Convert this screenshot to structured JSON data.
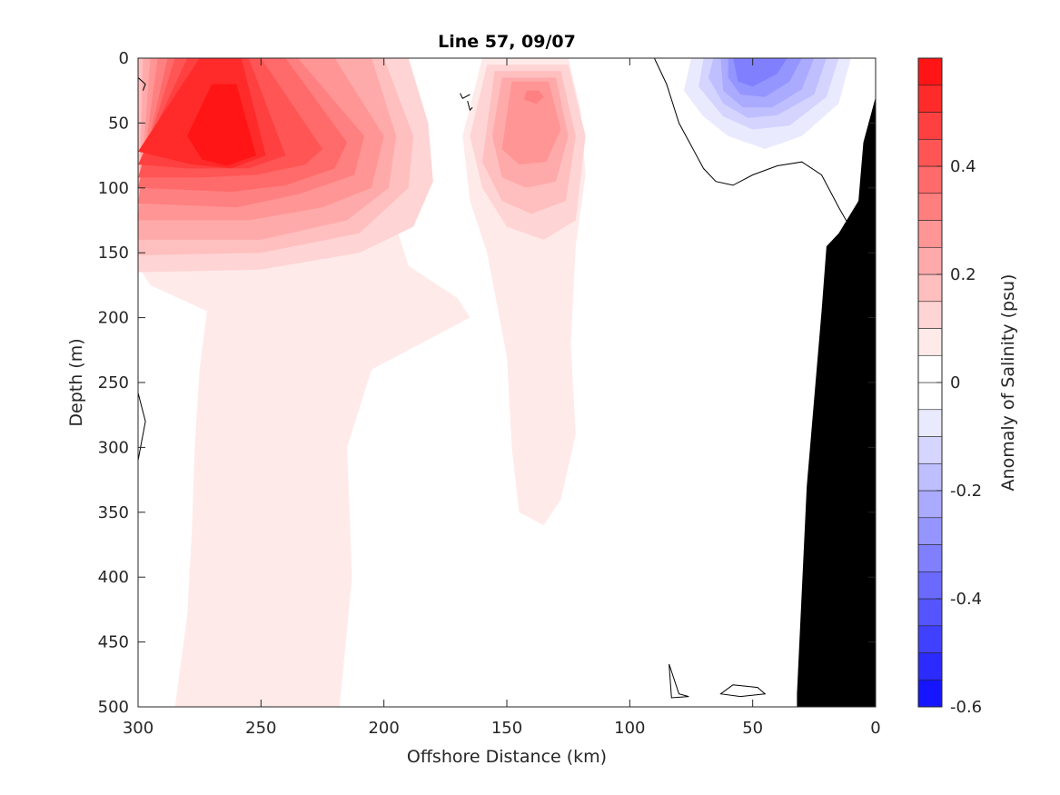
{
  "chart_data": {
    "type": "contour",
    "title": "Line 57, 09/07",
    "xlabel": "Offshore Distance (km)",
    "ylabel": "Depth (m)",
    "xlim": [
      300,
      0
    ],
    "ylim": [
      500,
      0
    ],
    "x_reversed": true,
    "y_reversed": true,
    "x_ticks": [
      300,
      250,
      200,
      150,
      100,
      50,
      0
    ],
    "y_ticks": [
      0,
      50,
      100,
      150,
      200,
      250,
      300,
      350,
      400,
      450,
      500
    ],
    "colorbar": {
      "label": "Anomaly of Salinity (psu)",
      "range": [
        -0.6,
        0.6
      ],
      "step": 0.05,
      "ticks": [
        -0.6,
        -0.4,
        -0.2,
        0,
        0.2,
        0.4
      ],
      "tick_labels": [
        "-0.6",
        "-0.4",
        "-0.2",
        "0",
        "0.2",
        "0.4"
      ],
      "negative_color": "#0000ff",
      "positive_color": "#ff0000",
      "zero_color": "#ffffff"
    },
    "features": [
      {
        "name": "salty-core-offshore",
        "center": [
          262,
          75
        ],
        "levels": [
          {
            "value": 0.05,
            "poly": [
              [
                300,
                0
              ],
              [
                210,
                0
              ],
              [
                205,
                30
              ],
              [
                210,
                70
              ],
              [
                200,
                100
              ],
              [
                190,
                160
              ],
              [
                170,
                185
              ],
              [
                165,
                200
              ],
              [
                180,
                215
              ],
              [
                205,
                240
              ],
              [
                215,
                300
              ],
              [
                213,
                400
              ],
              [
                218,
                500
              ],
              [
                285,
                500
              ],
              [
                280,
                430
              ],
              [
                278,
                360
              ],
              [
                277,
                300
              ],
              [
                275,
                240
              ],
              [
                272,
                195
              ],
              [
                295,
                175
              ],
              [
                300,
                160
              ]
            ]
          },
          {
            "value": 0.1,
            "poly": [
              [
                300,
                0
              ],
              [
                190,
                0
              ],
              [
                182,
                50
              ],
              [
                180,
                95
              ],
              [
                188,
                130
              ],
              [
                210,
                150
              ],
              [
                250,
                163
              ],
              [
                300,
                165
              ]
            ]
          },
          {
            "value": 0.15,
            "poly": [
              [
                300,
                0
              ],
              [
                200,
                0
              ],
              [
                188,
                60
              ],
              [
                190,
                100
              ],
              [
                210,
                135
              ],
              [
                250,
                150
              ],
              [
                300,
                152
              ]
            ]
          },
          {
            "value": 0.2,
            "poly": [
              [
                298,
                0
              ],
              [
                205,
                0
              ],
              [
                195,
                60
              ],
              [
                198,
                100
              ],
              [
                215,
                125
              ],
              [
                250,
                140
              ],
              [
                300,
                140
              ]
            ]
          },
          {
            "value": 0.25,
            "poly": [
              [
                295,
                0
              ],
              [
                220,
                0
              ],
              [
                200,
                60
              ],
              [
                205,
                100
              ],
              [
                225,
                115
              ],
              [
                255,
                125
              ],
              [
                300,
                125
              ]
            ]
          },
          {
            "value": 0.3,
            "poly": [
              [
                292,
                0
              ],
              [
                235,
                0
              ],
              [
                208,
                60
              ],
              [
                212,
                90
              ],
              [
                235,
                105
              ],
              [
                260,
                115
              ],
              [
                300,
                112
              ]
            ]
          },
          {
            "value": 0.35,
            "poly": [
              [
                288,
                0
              ],
              [
                240,
                0
              ],
              [
                215,
                65
              ],
              [
                220,
                85
              ],
              [
                240,
                98
              ],
              [
                262,
                103
              ],
              [
                300,
                100
              ]
            ]
          },
          {
            "value": 0.4,
            "poly": [
              [
                285,
                0
              ],
              [
                250,
                0
              ],
              [
                225,
                70
              ],
              [
                232,
                82
              ],
              [
                252,
                90
              ],
              [
                275,
                92
              ],
              [
                300,
                92
              ]
            ]
          },
          {
            "value": 0.45,
            "poly": [
              [
                280,
                0
              ],
              [
                255,
                0
              ],
              [
                240,
                75
              ],
              [
                255,
                85
              ],
              [
                280,
                85
              ],
              [
                300,
                82
              ]
            ]
          },
          {
            "value": 0.5,
            "poly": [
              [
                275,
                0
              ],
              [
                258,
                0
              ],
              [
                248,
                75
              ],
              [
                262,
                85
              ],
              [
                278,
                82
              ],
              [
                300,
                72
              ]
            ]
          },
          {
            "value": 0.55,
            "poly": [
              [
                270,
                20
              ],
              [
                260,
                20
              ],
              [
                252,
                75
              ],
              [
                264,
                83
              ],
              [
                274,
                78
              ],
              [
                280,
                60
              ]
            ]
          }
        ]
      },
      {
        "name": "salty-core-mid",
        "center": [
          138,
          50
        ],
        "levels": [
          {
            "value": 0.05,
            "poly": [
              [
                160,
                0
              ],
              [
                125,
                0
              ],
              [
                120,
                40
              ],
              [
                118,
                90
              ],
              [
                122,
                145
              ],
              [
                124,
                220
              ],
              [
                122,
                290
              ],
              [
                128,
                340
              ],
              [
                135,
                360
              ],
              [
                145,
                350
              ],
              [
                148,
                300
              ],
              [
                150,
                230
              ],
              [
                158,
                150
              ],
              [
                165,
                110
              ],
              [
                168,
                60
              ]
            ]
          },
          {
            "value": 0.1,
            "poly": [
              [
                158,
                5
              ],
              [
                125,
                5
              ],
              [
                118,
                60
              ],
              [
                122,
                125
              ],
              [
                135,
                140
              ],
              [
                150,
                130
              ],
              [
                160,
                100
              ],
              [
                165,
                60
              ]
            ]
          },
          {
            "value": 0.15,
            "poly": [
              [
                155,
                10
              ],
              [
                128,
                10
              ],
              [
                122,
                60
              ],
              [
                126,
                110
              ],
              [
                140,
                120
              ],
              [
                152,
                110
              ],
              [
                160,
                80
              ]
            ]
          },
          {
            "value": 0.2,
            "poly": [
              [
                152,
                15
              ],
              [
                130,
                15
              ],
              [
                125,
                60
              ],
              [
                130,
                95
              ],
              [
                142,
                100
              ],
              [
                152,
                92
              ],
              [
                156,
                60
              ]
            ]
          },
          {
            "value": 0.25,
            "poly": [
              [
                148,
                18
              ],
              [
                133,
                18
              ],
              [
                128,
                55
              ],
              [
                134,
                80
              ],
              [
                145,
                82
              ],
              [
                152,
                70
              ]
            ]
          },
          {
            "value": 0.3,
            "poly": [
              [
                142,
                25
              ],
              [
                137,
                25
              ],
              [
                135,
                30
              ],
              [
                138,
                35
              ],
              [
                143,
                32
              ]
            ]
          }
        ]
      },
      {
        "name": "fresh-core-nearshore",
        "center": [
          52,
          15
        ],
        "levels": [
          {
            "value": -0.05,
            "poly": [
              [
                75,
                0
              ],
              [
                10,
                0
              ],
              [
                15,
                35
              ],
              [
                30,
                60
              ],
              [
                45,
                70
              ],
              [
                60,
                60
              ],
              [
                70,
                45
              ],
              [
                78,
                25
              ]
            ]
          },
          {
            "value": -0.1,
            "poly": [
              [
                70,
                0
              ],
              [
                15,
                0
              ],
              [
                20,
                30
              ],
              [
                35,
                52
              ],
              [
                50,
                55
              ],
              [
                62,
                45
              ],
              [
                72,
                22
              ]
            ]
          },
          {
            "value": -0.15,
            "poly": [
              [
                66,
                0
              ],
              [
                20,
                0
              ],
              [
                25,
                28
              ],
              [
                40,
                44
              ],
              [
                52,
                46
              ],
              [
                62,
                35
              ],
              [
                68,
                15
              ]
            ]
          },
          {
            "value": -0.2,
            "poly": [
              [
                63,
                0
              ],
              [
                25,
                0
              ],
              [
                30,
                24
              ],
              [
                42,
                38
              ],
              [
                54,
                38
              ],
              [
                62,
                25
              ]
            ]
          },
          {
            "value": -0.25,
            "poly": [
              [
                60,
                0
              ],
              [
                30,
                0
              ],
              [
                35,
                18
              ],
              [
                45,
                30
              ],
              [
                55,
                28
              ],
              [
                60,
                15
              ]
            ]
          },
          {
            "value": -0.3,
            "poly": [
              [
                58,
                0
              ],
              [
                36,
                0
              ],
              [
                40,
                12
              ],
              [
                50,
                22
              ],
              [
                56,
                18
              ]
            ]
          }
        ]
      }
    ],
    "zero_contours": [
      [
        [
          90,
          0
        ],
        [
          85,
          20
        ],
        [
          80,
          50
        ],
        [
          70,
          85
        ],
        [
          65,
          95
        ],
        [
          58,
          98
        ],
        [
          50,
          90
        ],
        [
          40,
          83
        ],
        [
          30,
          80
        ],
        [
          22,
          90
        ],
        [
          15,
          115
        ],
        [
          12,
          125
        ],
        [
          8,
          128
        ]
      ],
      [
        [
          300,
          15
        ],
        [
          297,
          20
        ],
        [
          298,
          25
        ]
      ],
      [
        [
          300,
          258
        ],
        [
          297,
          280
        ],
        [
          299,
          300
        ],
        [
          300,
          310
        ]
      ],
      [
        [
          169,
          27
        ],
        [
          168,
          31
        ],
        [
          165,
          28
        ]
      ],
      [
        [
          166,
          33
        ],
        [
          165,
          40
        ],
        [
          164,
          38
        ]
      ],
      [
        [
          84,
          467
        ],
        [
          80,
          490
        ],
        [
          76,
          492
        ],
        [
          83,
          493
        ],
        [
          84,
          467
        ]
      ],
      [
        [
          58,
          483
        ],
        [
          48,
          485
        ],
        [
          45,
          490
        ],
        [
          55,
          492
        ],
        [
          63,
          490
        ],
        [
          58,
          483
        ]
      ]
    ],
    "bathymetry": {
      "label": "seafloor",
      "color": "#000000",
      "poly": [
        [
          0,
          30
        ],
        [
          5,
          65
        ],
        [
          7,
          110
        ],
        [
          15,
          135
        ],
        [
          20,
          145
        ],
        [
          22,
          195
        ],
        [
          28,
          330
        ],
        [
          32,
          490
        ],
        [
          32,
          500
        ],
        [
          0,
          500
        ]
      ]
    }
  }
}
